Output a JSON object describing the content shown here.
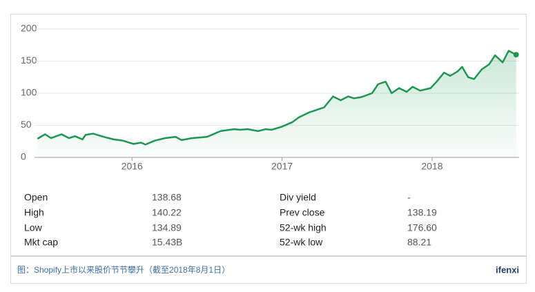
{
  "chart_data": {
    "type": "line",
    "x": [
      2015.37,
      2015.42,
      2015.46,
      2015.53,
      2015.58,
      2015.62,
      2015.67,
      2015.69,
      2015.74,
      2015.81,
      2015.88,
      2015.94,
      2016.01,
      2016.06,
      2016.09,
      2016.15,
      2016.22,
      2016.29,
      2016.33,
      2016.4,
      2016.5,
      2016.59,
      2016.68,
      2016.72,
      2016.77,
      2016.84,
      2016.89,
      2016.93,
      2017.0,
      2017.07,
      2017.11,
      2017.18,
      2017.28,
      2017.34,
      2017.39,
      2017.44,
      2017.48,
      2017.53,
      2017.6,
      2017.64,
      2017.69,
      2017.73,
      2017.78,
      2017.83,
      2017.87,
      2017.92,
      2017.99,
      2018.03,
      2018.08,
      2018.12,
      2018.17,
      2018.2,
      2018.24,
      2018.28,
      2018.33,
      2018.38,
      2018.42,
      2018.47,
      2018.51,
      2018.56
    ],
    "values": [
      29,
      36,
      30,
      36,
      30,
      33,
      28,
      35,
      37,
      32,
      28,
      26,
      21,
      23,
      20,
      26,
      30,
      32,
      27,
      30,
      32,
      41,
      44,
      43,
      44,
      41,
      44,
      43,
      48,
      55,
      62,
      70,
      78,
      95,
      89,
      95,
      92,
      94,
      100,
      114,
      118,
      100,
      108,
      102,
      110,
      104,
      108,
      118,
      132,
      127,
      134,
      141,
      125,
      122,
      137,
      145,
      159,
      148,
      166,
      160
    ],
    "color": "#1a9850",
    "xlim": [
      2015.35,
      2018.58
    ],
    "xticks": [
      2016,
      2017,
      2018
    ],
    "ylim": [
      0,
      200
    ],
    "yticks": [
      0,
      50,
      100,
      150,
      200
    ],
    "grid": true
  },
  "stats": [
    {
      "label": "Open",
      "value": "138.68"
    },
    {
      "label": "High",
      "value": "140.22"
    },
    {
      "label": "Low",
      "value": "134.89"
    },
    {
      "label": "Mkt cap",
      "value": "15.43B"
    },
    {
      "label": "Div yield",
      "value": "-"
    },
    {
      "label": "Prev close",
      "value": "138.19"
    },
    {
      "label": "52-wk high",
      "value": "176.60"
    },
    {
      "label": "52-wk low",
      "value": "88.21"
    }
  ],
  "caption": "图：Shopify上市以来股价节节攀升（截至2018年8月1日）",
  "brand": "ifenxi"
}
